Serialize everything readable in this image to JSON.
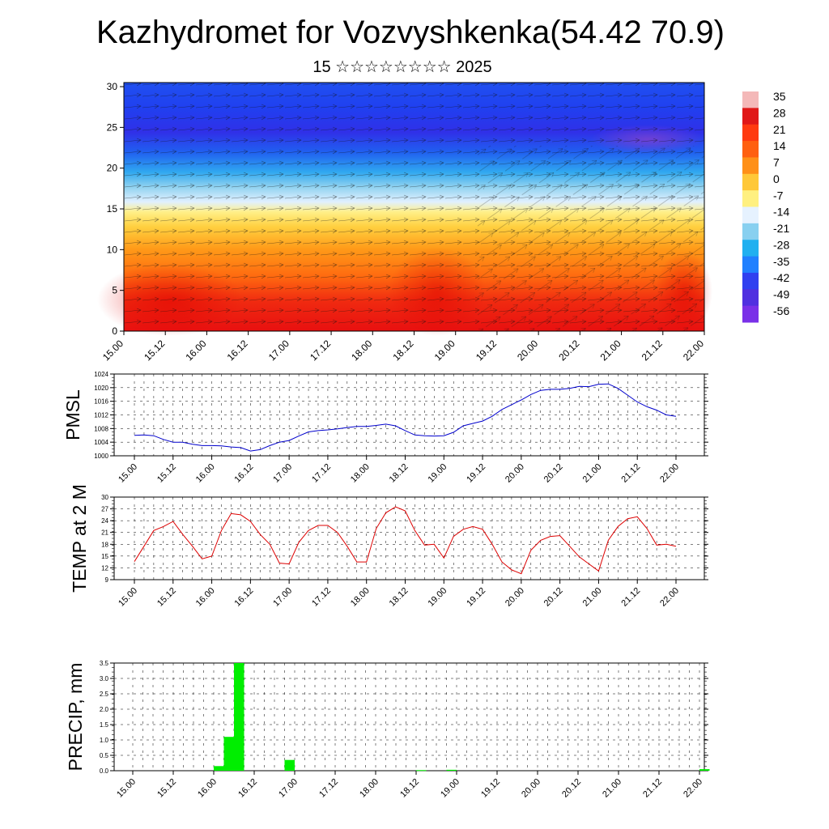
{
  "page": {
    "title": "Kazhydromet for Vozvyshkenka(54.42 70.9)",
    "subtitle": "15 ☆☆☆☆☆☆☆☆ 2025"
  },
  "colors": {
    "pmsl_line": "#0000cc",
    "temp_line": "#dd0000",
    "precip_bar": "#00ee00",
    "field_cold": "#6020e0",
    "field_warm": "#e01010"
  },
  "chart_data": [
    {
      "id": "cross-section",
      "type": "heatmap",
      "title": "",
      "xlabel": "",
      "ylabel": "",
      "x_tick_labels": [
        "15.00",
        "15.12",
        "16.00",
        "16.12",
        "17.00",
        "17.12",
        "18.00",
        "18.12",
        "19.00",
        "19.12",
        "20.00",
        "20.12",
        "21.00",
        "21.12",
        "22.00"
      ],
      "y_ticks": [
        0,
        5,
        10,
        15,
        20,
        25,
        30
      ],
      "ylim": [
        0,
        30.5
      ],
      "colorbar_labels": [
        "35",
        "28",
        "21",
        "14",
        "7",
        "0",
        "-7",
        "-14",
        "-21",
        "-28",
        "-35",
        "-42",
        "-49",
        "-56"
      ],
      "colorbar_colors": [
        "#f4b8b8",
        "#e01818",
        "#ff3a10",
        "#ff6010",
        "#ff9018",
        "#ffc838",
        "#fff080",
        "#e6f2ff",
        "#88d0f0",
        "#20b0f0",
        "#2080ff",
        "#3040f0",
        "#5030e0",
        "#7a30e8"
      ],
      "values_note_by_height": [
        {
          "height": 2,
          "value": 21
        },
        {
          "height": 8,
          "value": 10
        },
        {
          "height": 14,
          "value": -5
        },
        {
          "height": 19,
          "value": -25
        },
        {
          "height": 25,
          "value": -49
        },
        {
          "height": 30,
          "value": -40
        }
      ]
    },
    {
      "id": "pmsl",
      "type": "line",
      "ylabel": "PMSL",
      "ylim": [
        1000,
        1024
      ],
      "y_ticks": [
        1000,
        1004,
        1008,
        1012,
        1016,
        1020,
        1024
      ],
      "x_tick_labels": [
        "15.00",
        "15.12",
        "16.00",
        "16.12",
        "17.00",
        "17.12",
        "18.00",
        "18.12",
        "19.00",
        "19.12",
        "20.00",
        "20.12",
        "21.00",
        "21.12",
        "22.00"
      ],
      "x_hours": [
        0,
        3,
        6,
        9,
        12,
        15,
        18,
        21,
        24,
        27,
        30,
        33,
        36,
        39,
        42,
        45,
        48,
        51,
        54,
        57,
        60,
        63,
        66,
        69,
        72,
        75,
        78,
        81,
        84,
        87,
        90,
        93,
        96,
        99,
        102,
        105,
        108,
        111,
        114,
        117,
        120,
        123,
        126,
        129,
        132,
        135,
        138,
        141,
        144,
        147,
        150,
        153,
        156,
        159,
        162,
        165,
        168
      ],
      "series": [
        {
          "values": [
            1006.0,
            1006.1,
            1005.9,
            1004.8,
            1004.0,
            1004.0,
            1003.4,
            1003.0,
            1003.0,
            1002.9,
            1002.6,
            1002.4,
            1001.4,
            1001.8,
            1003.0,
            1004.0,
            1004.5,
            1005.8,
            1007.0,
            1007.4,
            1007.6,
            1007.9,
            1008.3,
            1008.6,
            1008.6,
            1008.9,
            1009.3,
            1008.8,
            1007.4,
            1006.1,
            1005.9,
            1005.8,
            1005.9,
            1006.9,
            1008.8,
            1009.5,
            1010.2,
            1011.6,
            1013.6,
            1015.0,
            1016.4,
            1018.0,
            1019.2,
            1019.5,
            1019.5,
            1019.8,
            1020.4,
            1020.3,
            1021.0,
            1021.1,
            1019.8,
            1017.8,
            1015.8,
            1014.4,
            1013.4,
            1012.0,
            1011.6
          ]
        }
      ]
    },
    {
      "id": "temp",
      "type": "line",
      "ylabel": "TEMP at 2 M",
      "ylim": [
        9,
        30
      ],
      "y_ticks": [
        9,
        12,
        15,
        18,
        21,
        24,
        27,
        30
      ],
      "x_tick_labels": [
        "15.00",
        "15.12",
        "16.00",
        "16.12",
        "17.00",
        "17.12",
        "18.00",
        "18.12",
        "19.00",
        "19.12",
        "20.00",
        "20.12",
        "21.00",
        "21.12",
        "22.00"
      ],
      "x_hours": [
        0,
        3,
        6,
        9,
        12,
        15,
        18,
        21,
        24,
        27,
        30,
        33,
        36,
        39,
        42,
        45,
        48,
        51,
        54,
        57,
        60,
        63,
        66,
        69,
        72,
        75,
        78,
        81,
        84,
        87,
        90,
        93,
        96,
        99,
        102,
        105,
        108,
        111,
        114,
        117,
        120,
        123,
        126,
        129,
        132,
        135,
        138,
        141,
        144,
        147,
        150,
        153,
        156,
        159,
        162,
        165,
        168
      ],
      "series": [
        {
          "values": [
            13.6,
            17.5,
            21.5,
            22.5,
            23.8,
            20.5,
            17.5,
            14.3,
            15.0,
            21.5,
            25.8,
            25.5,
            23.8,
            20.5,
            18.0,
            13.2,
            13.0,
            18.5,
            21.5,
            22.8,
            22.8,
            21.0,
            17.5,
            13.5,
            13.5,
            22.0,
            26.0,
            27.5,
            26.5,
            21.5,
            17.8,
            18.0,
            14.5,
            20.0,
            21.8,
            22.5,
            21.8,
            18.0,
            13.5,
            11.5,
            10.5,
            16.5,
            19.0,
            20.0,
            20.2,
            17.5,
            14.8,
            13.0,
            11.2,
            19.0,
            22.5,
            24.5,
            25.0,
            22.0,
            17.8,
            18.0,
            17.5
          ]
        }
      ]
    },
    {
      "id": "precip",
      "type": "bar",
      "ylabel": "PRECIP, mm",
      "ylim": [
        0,
        3.5
      ],
      "y_ticks": [
        "0.0",
        "0.5",
        "1.0",
        "1.5",
        "2.0",
        "2.5",
        "3.0",
        "3.5"
      ],
      "x_tick_labels": [
        "15.00",
        "15.12",
        "16.00",
        "16.12",
        "17.00",
        "17.12",
        "18.00",
        "18.12",
        "19.00",
        "19.12",
        "20.00",
        "20.12",
        "21.00",
        "21.12",
        "22.00"
      ],
      "bars_hours": [
        24,
        27,
        30,
        33,
        45,
        84,
        93,
        168
      ],
      "bars_values": [
        0.15,
        1.1,
        3.5,
        0.0,
        0.35,
        0.02,
        0.03,
        0.05
      ]
    }
  ]
}
